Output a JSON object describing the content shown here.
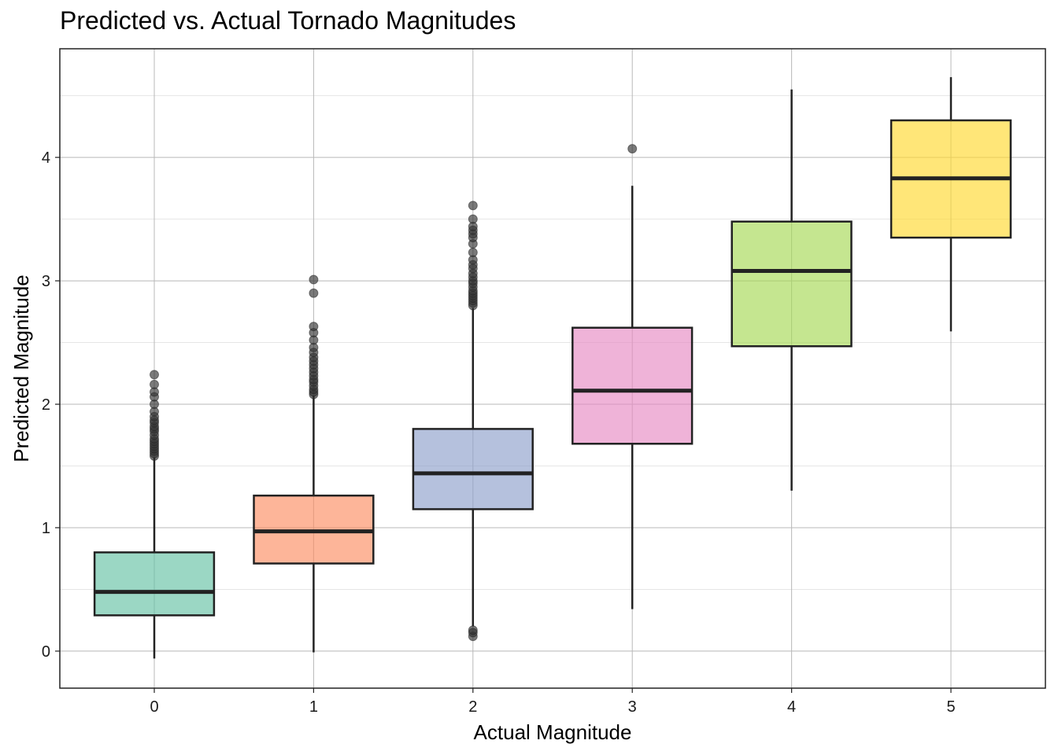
{
  "chart_data": {
    "type": "box",
    "title": "Predicted vs. Actual Tornado Magnitudes",
    "xlabel": "Actual Magnitude",
    "ylabel": "Predicted Magnitude",
    "categories": [
      "0",
      "1",
      "2",
      "3",
      "4",
      "5"
    ],
    "y_ticks": [
      0,
      1,
      2,
      3,
      4
    ],
    "ylim": [
      -0.3,
      4.88
    ],
    "grid": true,
    "legend": "none",
    "boxes": [
      {
        "category": "0",
        "whisker_low": -0.06,
        "q1": 0.29,
        "median": 0.48,
        "q3": 0.8,
        "whisker_high": 1.57,
        "color": "#66c2a5",
        "outliers": [
          1.58,
          1.6,
          1.62,
          1.64,
          1.66,
          1.68,
          1.7,
          1.72,
          1.75,
          1.78,
          1.8,
          1.82,
          1.85,
          1.87,
          1.9,
          1.94,
          2.0,
          2.06,
          2.1,
          2.16,
          2.24
        ]
      },
      {
        "category": "1",
        "whisker_low": -0.01,
        "q1": 0.71,
        "median": 0.97,
        "q3": 1.26,
        "whisker_high": 2.07,
        "color": "#fc8d62",
        "outliers": [
          2.08,
          2.1,
          2.12,
          2.15,
          2.18,
          2.2,
          2.23,
          2.26,
          2.29,
          2.32,
          2.35,
          2.38,
          2.42,
          2.46,
          2.52,
          2.58,
          2.63,
          2.9,
          3.01
        ]
      },
      {
        "category": "2",
        "whisker_low": 0.2,
        "q1": 1.15,
        "median": 1.44,
        "q3": 1.8,
        "whisker_high": 2.78,
        "color": "#8da0cb",
        "outliers": [
          0.12,
          0.15,
          0.17,
          2.8,
          2.82,
          2.84,
          2.86,
          2.88,
          2.9,
          2.92,
          2.95,
          2.98,
          3.0,
          3.03,
          3.06,
          3.1,
          3.13,
          3.17,
          3.23,
          3.3,
          3.35,
          3.38,
          3.41,
          3.44,
          3.5,
          3.61
        ]
      },
      {
        "category": "3",
        "whisker_low": 0.34,
        "q1": 1.68,
        "median": 2.11,
        "q3": 2.62,
        "whisker_high": 3.77,
        "color": "#e78ac3",
        "outliers": [
          4.07
        ]
      },
      {
        "category": "4",
        "whisker_low": 1.3,
        "q1": 2.47,
        "median": 3.08,
        "q3": 3.48,
        "whisker_high": 4.55,
        "color": "#a6d854",
        "outliers": []
      },
      {
        "category": "5",
        "whisker_low": 2.59,
        "q1": 3.35,
        "median": 3.83,
        "q3": 4.3,
        "whisker_high": 4.65,
        "color": "#ffd92f",
        "outliers": []
      }
    ]
  }
}
